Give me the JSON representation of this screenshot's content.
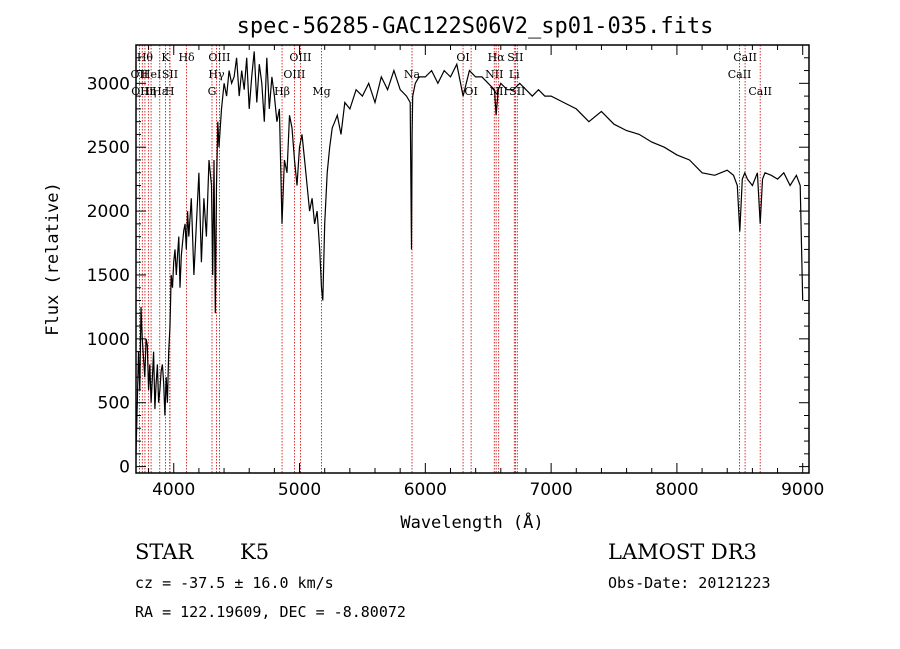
{
  "chart_data": {
    "type": "line",
    "title": "spec-56285-GAC122S06V2_sp01-035.fits",
    "xlabel": "Wavelength (Å)",
    "ylabel": "Flux (relative)",
    "xlim": [
      3700,
      9050
    ],
    "ylim": [
      -50,
      3300
    ],
    "xticks": [
      4000,
      5000,
      6000,
      7000,
      8000,
      9000
    ],
    "yticks": [
      0,
      500,
      1000,
      1500,
      2000,
      2500,
      3000
    ],
    "series": [
      {
        "name": "flux",
        "x": [
          3700,
          3710,
          3720,
          3730,
          3740,
          3750,
          3760,
          3770,
          3780,
          3790,
          3800,
          3810,
          3820,
          3830,
          3840,
          3850,
          3860,
          3870,
          3880,
          3890,
          3900,
          3910,
          3920,
          3930,
          3940,
          3950,
          3960,
          3970,
          3980,
          3990,
          4000,
          4010,
          4020,
          4030,
          4040,
          4050,
          4060,
          4070,
          4080,
          4090,
          4100,
          4110,
          4120,
          4140,
          4160,
          4180,
          4200,
          4220,
          4240,
          4260,
          4280,
          4300,
          4310,
          4320,
          4330,
          4340,
          4350,
          4360,
          4380,
          4400,
          4420,
          4440,
          4460,
          4480,
          4500,
          4520,
          4540,
          4560,
          4580,
          4600,
          4620,
          4640,
          4660,
          4680,
          4700,
          4720,
          4740,
          4760,
          4780,
          4800,
          4820,
          4840,
          4861,
          4880,
          4900,
          4920,
          4940,
          4960,
          4980,
          5000,
          5020,
          5040,
          5060,
          5080,
          5100,
          5120,
          5140,
          5160,
          5175,
          5185,
          5200,
          5220,
          5240,
          5260,
          5280,
          5300,
          5330,
          5360,
          5400,
          5450,
          5500,
          5550,
          5600,
          5650,
          5700,
          5750,
          5800,
          5850,
          5880,
          5890,
          5895,
          5900,
          5920,
          5950,
          6000,
          6050,
          6100,
          6150,
          6200,
          6250,
          6300,
          6350,
          6400,
          6450,
          6500,
          6550,
          6563,
          6580,
          6600,
          6650,
          6700,
          6750,
          6800,
          6850,
          6900,
          6950,
          7000,
          7100,
          7200,
          7300,
          7400,
          7500,
          7600,
          7700,
          7800,
          7900,
          8000,
          8100,
          8200,
          8300,
          8400,
          8450,
          8480,
          8500,
          8520,
          8540,
          8560,
          8600,
          8640,
          8662,
          8680,
          8700,
          8750,
          8800,
          8850,
          8900,
          8950,
          8980,
          9000
        ],
        "y": [
          100,
          500,
          900,
          600,
          1250,
          1000,
          850,
          700,
          1000,
          950,
          600,
          800,
          500,
          700,
          900,
          450,
          650,
          800,
          500,
          600,
          750,
          800,
          650,
          400,
          700,
          500,
          900,
          1100,
          1500,
          1400,
          1600,
          1700,
          1500,
          1650,
          1800,
          1400,
          1650,
          1750,
          1850,
          1900,
          1700,
          2000,
          1800,
          2100,
          1500,
          1900,
          2300,
          1600,
          2100,
          1800,
          2400,
          2200,
          1500,
          2400,
          1200,
          2200,
          2700,
          2500,
          2800,
          3000,
          2900,
          3100,
          3000,
          3050,
          3200,
          2900,
          3100,
          2950,
          3200,
          2800,
          3050,
          3250,
          2850,
          3150,
          3000,
          2700,
          3200,
          2800,
          3050,
          2900,
          2700,
          2800,
          1900,
          2400,
          2300,
          2750,
          2650,
          2400,
          2200,
          2500,
          2600,
          2400,
          2200,
          2000,
          2100,
          1900,
          2000,
          1700,
          1400,
          1300,
          1900,
          2300,
          2500,
          2650,
          2700,
          2750,
          2600,
          2850,
          2800,
          2950,
          2900,
          3000,
          2850,
          3050,
          2950,
          3100,
          2950,
          2900,
          2850,
          1700,
          2600,
          2900,
          3000,
          3050,
          3050,
          3100,
          3000,
          3100,
          3050,
          3150,
          2900,
          3100,
          3050,
          3050,
          3000,
          2950,
          2750,
          2950,
          3000,
          2950,
          2950,
          3000,
          2950,
          2900,
          2950,
          2900,
          2900,
          2850,
          2800,
          2700,
          2780,
          2680,
          2630,
          2600,
          2540,
          2500,
          2440,
          2400,
          2300,
          2280,
          2320,
          2280,
          2200,
          1840,
          2250,
          2300,
          2250,
          2200,
          2300,
          1900,
          2250,
          2300,
          2280,
          2250,
          2300,
          2200,
          2280,
          2200,
          1300
        ]
      }
    ],
    "line_markers": [
      {
        "wl": 3727,
        "label": "OII",
        "row": 2
      },
      {
        "wl": 3750,
        "label": "OIII",
        "row": 3
      },
      {
        "wl": 3771,
        "label": "Hθ",
        "row": 1
      },
      {
        "wl": 3798,
        "label": "Hη",
        "row": 3
      },
      {
        "wl": 3820,
        "label": "HeI",
        "row": 2
      },
      {
        "wl": 3889,
        "label": "Hε",
        "row": 3
      },
      {
        "wl": 3934,
        "label": "K",
        "row": 1
      },
      {
        "wl": 3968,
        "label": "H",
        "row": 3
      },
      {
        "wl": 3970,
        "label": "SII",
        "row": 2
      },
      {
        "wl": 4102,
        "label": "Hδ",
        "row": 1
      },
      {
        "wl": 4304,
        "label": "G",
        "row": 3
      },
      {
        "wl": 4340,
        "label": "Hγ",
        "row": 2
      },
      {
        "wl": 4363,
        "label": "OIII",
        "row": 1
      },
      {
        "wl": 4861,
        "label": "Hβ",
        "row": 3
      },
      {
        "wl": 4959,
        "label": "OIII",
        "row": 2
      },
      {
        "wl": 5007,
        "label": "OIII",
        "row": 1
      },
      {
        "wl": 5175,
        "label": "Mg",
        "row": 3
      },
      {
        "wl": 5894,
        "label": "Na",
        "row": 2
      },
      {
        "wl": 6300,
        "label": "OI",
        "row": 1
      },
      {
        "wl": 6364,
        "label": "OI",
        "row": 3
      },
      {
        "wl": 6548,
        "label": "NII",
        "row": 2
      },
      {
        "wl": 6563,
        "label": "Hα",
        "row": 1
      },
      {
        "wl": 6583,
        "label": "NII",
        "row": 3
      },
      {
        "wl": 6707,
        "label": "Li",
        "row": 2
      },
      {
        "wl": 6716,
        "label": "SII",
        "row": 1
      },
      {
        "wl": 6731,
        "label": "SII",
        "row": 3
      },
      {
        "wl": 8498,
        "label": "CaII",
        "row": 2
      },
      {
        "wl": 8542,
        "label": "CaII",
        "row": 1
      },
      {
        "wl": 8662,
        "label": "CaII",
        "row": 3
      }
    ]
  },
  "info": {
    "object_class": "STAR",
    "subclass": "K5",
    "survey": "LAMOST DR3",
    "redshift_line": "cz = -37.5 ± 16.0 km/s",
    "obs_date": "Obs-Date: 20121223",
    "coords": "RA = 122.19609, DEC =  -8.80072"
  },
  "colors": {
    "spectrum": "#000000",
    "marker_line": "#cc0000",
    "axes": "#000000",
    "background": "#ffffff"
  }
}
